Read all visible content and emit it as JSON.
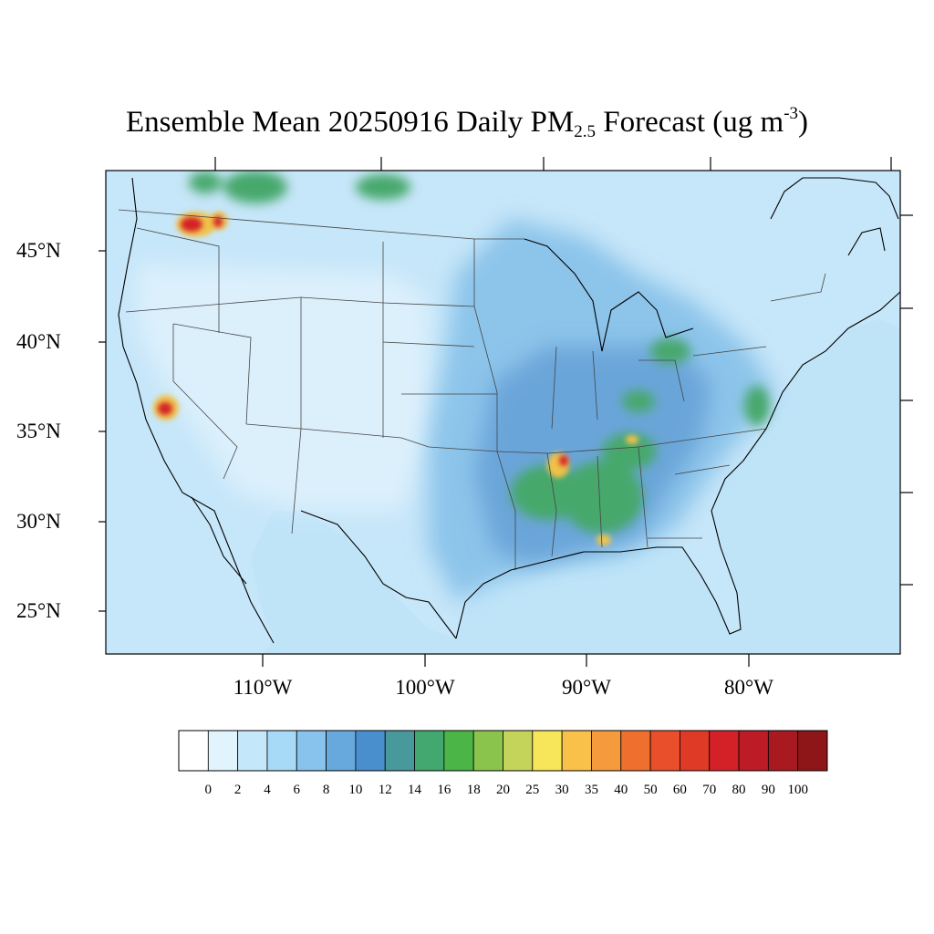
{
  "title": {
    "prefix": "Ensemble Mean 20250916 Daily PM",
    "subscript": "2.5",
    "middle": " Forecast (ug m",
    "superscript": "-3",
    "suffix": ")"
  },
  "latitude_labels": [
    "45°N",
    "40°N",
    "35°N",
    "30°N",
    "25°N"
  ],
  "longitude_labels": [
    "110°W",
    "100°W",
    "90°W",
    "80°W"
  ],
  "colorbar": {
    "labels": [
      "0",
      "2",
      "4",
      "6",
      "8",
      "10",
      "12",
      "14",
      "16",
      "18",
      "20",
      "25",
      "30",
      "35",
      "40",
      "50",
      "60",
      "70",
      "80",
      "90",
      "100"
    ],
    "colors": [
      "#ffffff",
      "#e1f3fd",
      "#c4e8fa",
      "#a7daf6",
      "#87c3ec",
      "#67a9dd",
      "#4a8fcd",
      "#47999b",
      "#43a870",
      "#4cb547",
      "#8ac44d",
      "#c4d45b",
      "#f7e659",
      "#f9c14a",
      "#f59b3d",
      "#ef6f2e",
      "#e84f2a",
      "#df3a26",
      "#d42128",
      "#bd1b25",
      "#a81920",
      "#8e1618"
    ]
  },
  "map_colors": {
    "ocean": "#bfe4f8",
    "land": "#c6e6f9",
    "west": "#dcf0fc",
    "central_band": "#8cc4ea",
    "southeast": "#6aa5d9",
    "hotspot_mid": "#47a86c",
    "hotspot_high": "#f0c248",
    "hotspot_peak": "#d42128",
    "coast_line": "#000000",
    "state_line": "#444444"
  }
}
